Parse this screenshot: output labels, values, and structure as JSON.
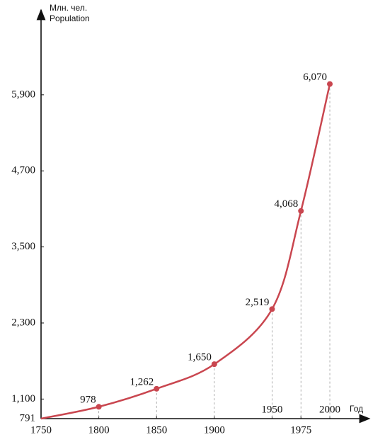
{
  "chart_data": {
    "type": "line",
    "y_label": [
      "Млн. чел.",
      "Population"
    ],
    "x_label": "Год",
    "x": [
      1750,
      1800,
      1850,
      1900,
      1950,
      1975,
      2000
    ],
    "series": [
      {
        "color": "#c9464f",
        "values": [
          791,
          978,
          1262,
          1650,
          2519,
          4068,
          6070
        ],
        "value_labels": [
          null,
          "978",
          "1,262",
          "1,650",
          "2,519",
          "4,068",
          "6,070"
        ]
      }
    ],
    "xlim": [
      1750,
      2030
    ],
    "xticks": [
      1750,
      1800,
      1850,
      1900,
      1950,
      1975,
      2000
    ],
    "ylim": [
      791,
      7150
    ],
    "yticks": [
      791,
      {
        "value": 1100,
        "label": "1,100"
      },
      {
        "value": 2300,
        "label": "2,300"
      },
      {
        "value": 3500,
        "label": "3,500"
      },
      {
        "value": 4700,
        "label": "4,700"
      },
      {
        "value": 5900,
        "label": "5,900"
      }
    ],
    "grid": false
  }
}
